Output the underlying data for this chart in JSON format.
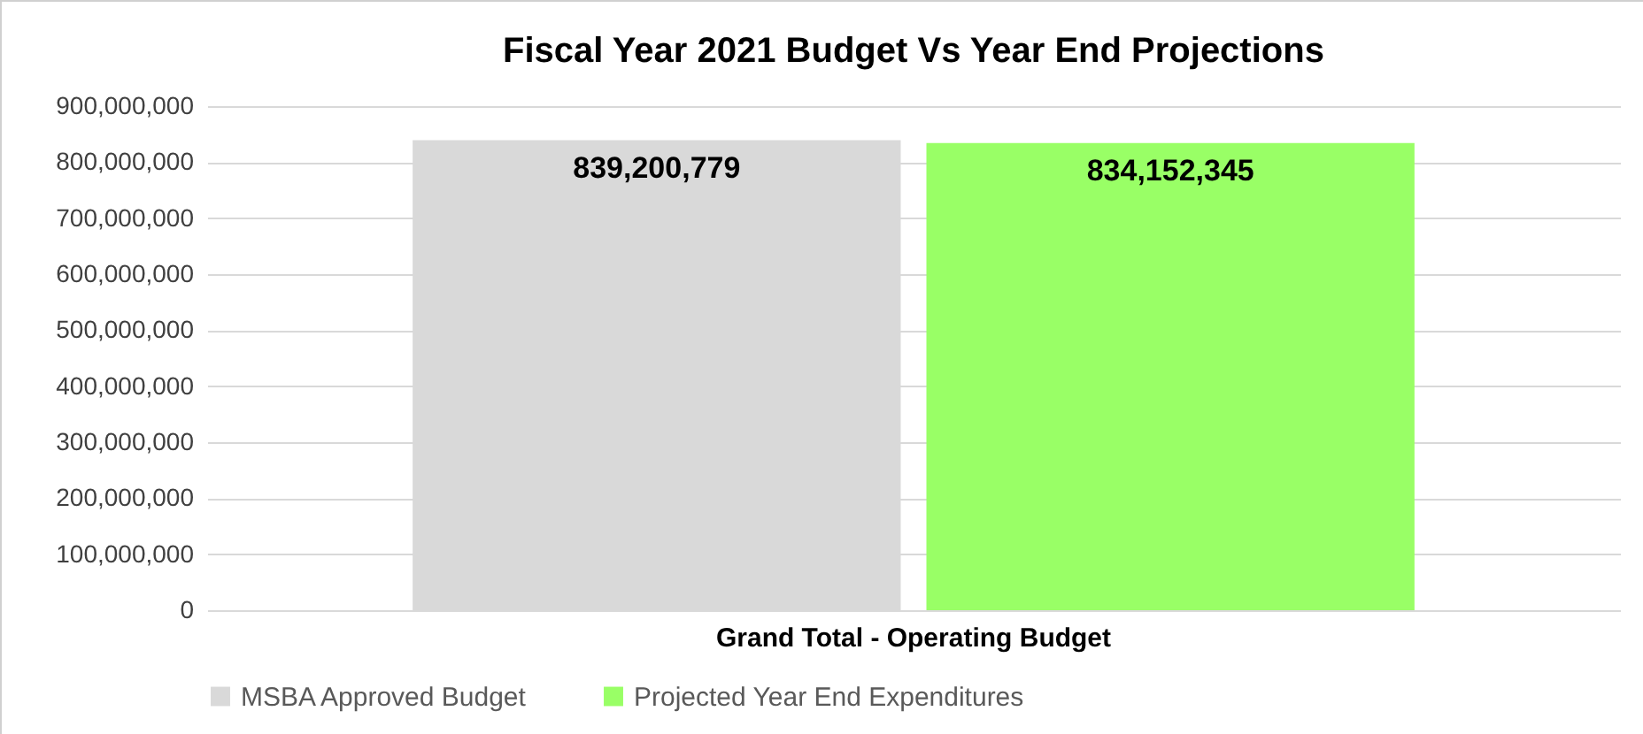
{
  "chart_data": {
    "type": "bar",
    "title": "Fiscal Year 2021 Budget Vs Year End Projections",
    "categories": [
      "Grand Total - Operating Budget"
    ],
    "series": [
      {
        "name": "MSBA Approved Budget",
        "color": "#d9d9d9",
        "values": [
          839200779
        ],
        "value_labels": [
          "839,200,779"
        ]
      },
      {
        "name": "Projected Year End Expenditures",
        "color": "#99ff66",
        "values": [
          834152345
        ],
        "value_labels": [
          "834,152,345"
        ]
      }
    ],
    "ylim": [
      0,
      900000000
    ],
    "yticks": [
      0,
      {
        "value": 100000000,
        "label": "100,000,000"
      },
      {
        "value": 200000000,
        "label": "200,000,000"
      },
      {
        "value": 300000000,
        "label": "300,000,000"
      },
      {
        "value": 400000000,
        "label": "400,000,000"
      },
      {
        "value": 500000000,
        "label": "500,000,000"
      },
      {
        "value": 600000000,
        "label": "600,000,000"
      },
      {
        "value": 700000000,
        "label": "700,000,000"
      },
      {
        "value": 800000000,
        "label": "800,000,000"
      },
      {
        "value": 900000000,
        "label": "900,000,000"
      }
    ],
    "grid": "y",
    "legend": "bottom"
  }
}
